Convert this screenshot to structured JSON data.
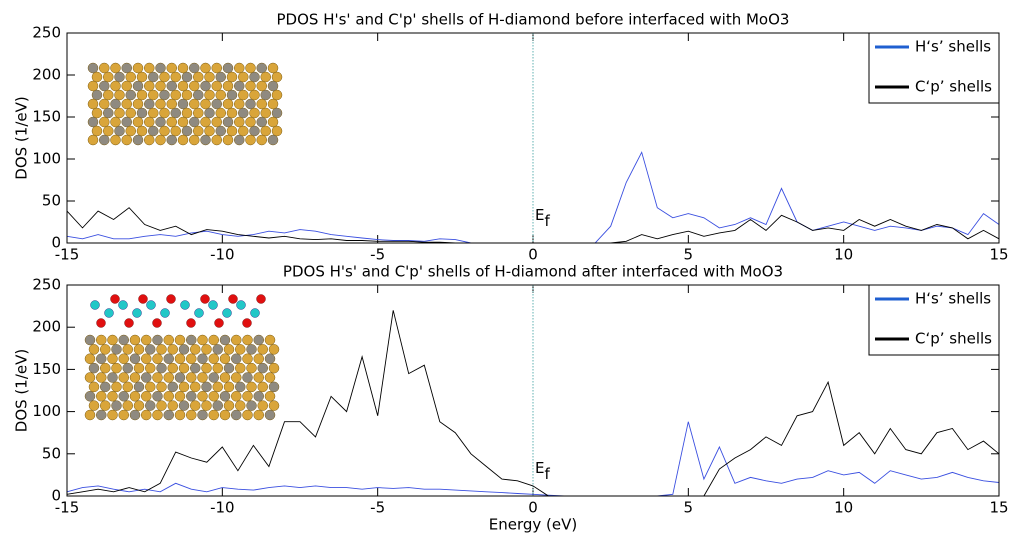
{
  "chart_data": [
    {
      "type": "line",
      "title": "PDOS H's' and C'p' shells of H-diamond before interfaced with MoO3",
      "ylabel": "DOS (1/eV)",
      "annotation": "E",
      "annotation_sub": "f",
      "vline": 0,
      "legend": "upper right",
      "x": [
        -15,
        -14.5,
        -14,
        -13.5,
        -13,
        -12.5,
        -12,
        -11.5,
        -11,
        -10.5,
        -10,
        -9.5,
        -9,
        -8.5,
        -8,
        -7.5,
        -7,
        -6.5,
        -6,
        -5.5,
        -5,
        -4.5,
        -4,
        -3.5,
        -3,
        -2.5,
        -2,
        -1.5,
        -1,
        -0.5,
        0,
        0.5,
        1,
        1.5,
        2,
        2.5,
        3,
        3.5,
        4,
        4.5,
        5,
        5.5,
        6,
        6.5,
        7,
        7.5,
        8,
        8.5,
        9,
        9.5,
        10,
        10.5,
        11,
        11.5,
        12,
        12.5,
        13,
        13.5,
        14,
        14.5,
        15
      ],
      "series": [
        {
          "name": "H‘s’ shells",
          "color": "#3a4fe0",
          "values": [
            8,
            5,
            10,
            5,
            5,
            8,
            10,
            8,
            12,
            14,
            10,
            8,
            10,
            14,
            12,
            16,
            14,
            10,
            8,
            6,
            4,
            3,
            3,
            2,
            5,
            4,
            0,
            0,
            0,
            0,
            0,
            0,
            0,
            0,
            0,
            20,
            72,
            108,
            42,
            30,
            35,
            30,
            18,
            22,
            30,
            22,
            65,
            25,
            15,
            20,
            25,
            20,
            15,
            20,
            18,
            15,
            20,
            18,
            10,
            35,
            22
          ]
        },
        {
          "name": "C‘p’ shells",
          "color": "#000000",
          "values": [
            38,
            18,
            38,
            28,
            42,
            22,
            15,
            20,
            10,
            16,
            14,
            10,
            8,
            6,
            8,
            5,
            4,
            5,
            3,
            3,
            2,
            2,
            2,
            1,
            1,
            0,
            0,
            0,
            0,
            0,
            0,
            0,
            0,
            0,
            0,
            0,
            2,
            10,
            5,
            10,
            14,
            8,
            12,
            15,
            28,
            15,
            33,
            25,
            15,
            18,
            15,
            28,
            20,
            28,
            20,
            15,
            22,
            18,
            5,
            15,
            5
          ]
        }
      ],
      "xlim": [
        -15,
        15
      ],
      "ylim": [
        0,
        250
      ],
      "xticks": [
        -15,
        -10,
        -5,
        0,
        5,
        10,
        15
      ],
      "yticks": [
        0,
        50,
        100,
        150,
        200,
        250
      ]
    },
    {
      "type": "line",
      "title": "PDOS H's' and C'p' shells of H-diamond after interfaced with MoO3",
      "ylabel": "DOS (1/eV)",
      "xlabel": "Energy (eV)",
      "annotation": "E",
      "annotation_sub": "f",
      "vline": 0,
      "legend": "upper right",
      "x": [
        -15,
        -14.5,
        -14,
        -13.5,
        -13,
        -12.5,
        -12,
        -11.5,
        -11,
        -10.5,
        -10,
        -9.5,
        -9,
        -8.5,
        -8,
        -7.5,
        -7,
        -6.5,
        -6,
        -5.5,
        -5,
        -4.5,
        -4,
        -3.5,
        -3,
        -2.5,
        -2,
        -1.5,
        -1,
        -0.5,
        0,
        0.5,
        1,
        1.5,
        2,
        2.5,
        3,
        3.5,
        4,
        4.5,
        5,
        5.5,
        6,
        6.5,
        7,
        7.5,
        8,
        8.5,
        9,
        9.5,
        10,
        10.5,
        11,
        11.5,
        12,
        12.5,
        13,
        13.5,
        14,
        14.5,
        15
      ],
      "series": [
        {
          "name": "H‘s’ shells",
          "color": "#3a4fe0",
          "values": [
            5,
            10,
            12,
            8,
            5,
            8,
            5,
            15,
            8,
            5,
            10,
            8,
            7,
            10,
            12,
            10,
            12,
            10,
            10,
            8,
            10,
            9,
            10,
            8,
            8,
            7,
            6,
            5,
            4,
            3,
            2,
            1,
            0,
            0,
            0,
            0,
            0,
            0,
            0,
            2,
            88,
            20,
            58,
            15,
            22,
            18,
            15,
            20,
            22,
            30,
            25,
            28,
            15,
            30,
            25,
            20,
            22,
            28,
            22,
            18,
            16
          ]
        },
        {
          "name": "C‘p’ shells",
          "color": "#000000",
          "values": [
            2,
            5,
            8,
            5,
            10,
            5,
            15,
            52,
            45,
            40,
            58,
            30,
            60,
            35,
            88,
            88,
            70,
            118,
            100,
            165,
            95,
            220,
            145,
            155,
            88,
            75,
            50,
            35,
            20,
            18,
            12,
            0,
            0,
            0,
            0,
            0,
            0,
            0,
            0,
            0,
            0,
            0,
            32,
            45,
            55,
            70,
            60,
            95,
            100,
            135,
            60,
            75,
            50,
            80,
            55,
            50,
            75,
            80,
            55,
            65,
            50
          ]
        }
      ],
      "xlim": [
        -15,
        15
      ],
      "ylim": [
        0,
        250
      ],
      "xticks": [
        -15,
        -10,
        -5,
        0,
        5,
        10,
        15
      ],
      "yticks": [
        0,
        50,
        100,
        150,
        200,
        250
      ]
    }
  ]
}
